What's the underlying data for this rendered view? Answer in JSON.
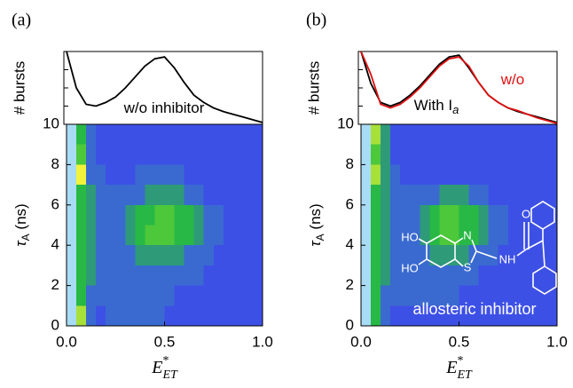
{
  "chart_data": [
    {
      "type": "line",
      "panel_label": "(a)",
      "ylabel": "# bursts",
      "xlim": [
        0,
        1
      ],
      "ylim": [
        0,
        80
      ],
      "x": [
        0,
        0.05,
        0.1,
        0.15,
        0.2,
        0.25,
        0.3,
        0.35,
        0.4,
        0.45,
        0.5,
        0.55,
        0.6,
        0.65,
        0.7,
        0.75,
        0.8,
        0.85,
        0.9,
        0.95,
        1
      ],
      "series": [
        {
          "name": "w/o inhibitor",
          "color": "#000000",
          "values": [
            80,
            40,
            22,
            20,
            24,
            30,
            40,
            52,
            64,
            72,
            74,
            62,
            46,
            32,
            24,
            18,
            14,
            11,
            8,
            5,
            2
          ]
        }
      ]
    },
    {
      "type": "heatmap",
      "xlim": [
        0,
        1
      ],
      "ylim": [
        0,
        10
      ],
      "xticks": [
        {
          "value": 0,
          "label": "0.0"
        },
        {
          "value": 0.5,
          "label": "0.5"
        },
        {
          "value": 1,
          "label": "1.0"
        }
      ],
      "yticks": [
        0,
        2,
        4,
        6,
        8,
        10
      ],
      "xlabel": {
        "base": "E",
        "sup": "*",
        "sub": "ET"
      },
      "ylabel": {
        "base": "τ",
        "sub": "A",
        "unit": " (ns)"
      },
      "colors": [
        "#3d50e6",
        "#3a6ad0",
        "#2e9a78",
        "#28b845",
        "#4cc83a",
        "#a8e03a",
        "#f2f23a",
        "#a8dcf5"
      ],
      "z": [
        [
          7,
          3,
          1,
          0,
          0,
          0,
          0,
          0,
          0,
          0,
          0,
          0,
          0,
          0,
          0,
          0,
          0,
          0,
          0,
          0
        ],
        [
          7,
          4,
          1,
          0,
          0,
          0,
          0,
          0,
          0,
          0,
          0,
          0,
          0,
          0,
          0,
          0,
          0,
          0,
          0,
          0
        ],
        [
          7,
          6,
          1,
          1,
          0,
          0,
          0,
          1,
          1,
          1,
          1,
          1,
          0,
          0,
          0,
          0,
          0,
          0,
          0,
          0
        ],
        [
          7,
          3,
          2,
          1,
          1,
          1,
          1,
          1,
          2,
          2,
          2,
          2,
          1,
          1,
          0,
          0,
          0,
          0,
          0,
          0
        ],
        [
          7,
          3,
          2,
          1,
          1,
          1,
          2,
          3,
          3,
          4,
          4,
          3,
          3,
          2,
          1,
          1,
          0,
          0,
          0,
          0
        ],
        [
          7,
          3,
          2,
          1,
          1,
          1,
          2,
          3,
          4,
          4,
          4,
          3,
          3,
          2,
          1,
          1,
          0,
          0,
          0,
          0
        ],
        [
          7,
          3,
          2,
          1,
          1,
          1,
          1,
          2,
          2,
          2,
          2,
          2,
          1,
          1,
          1,
          0,
          0,
          0,
          0,
          0
        ],
        [
          7,
          3,
          2,
          1,
          1,
          1,
          1,
          1,
          1,
          1,
          1,
          1,
          1,
          1,
          0,
          0,
          0,
          0,
          0,
          0
        ],
        [
          7,
          3,
          1,
          1,
          1,
          1,
          1,
          1,
          1,
          1,
          1,
          0,
          0,
          0,
          0,
          0,
          0,
          0,
          0,
          0
        ],
        [
          7,
          5,
          1,
          0,
          1,
          1,
          1,
          1,
          1,
          1,
          0,
          0,
          0,
          0,
          0,
          0,
          0,
          0,
          0,
          0
        ]
      ]
    },
    {
      "type": "line",
      "panel_label": "(b)",
      "ylabel": "# bursts",
      "xlim": [
        0,
        1
      ],
      "ylim": [
        0,
        80
      ],
      "x": [
        0,
        0.05,
        0.1,
        0.15,
        0.2,
        0.25,
        0.3,
        0.35,
        0.4,
        0.45,
        0.5,
        0.55,
        0.6,
        0.65,
        0.7,
        0.75,
        0.8,
        0.85,
        0.9,
        0.95,
        1
      ],
      "series": [
        {
          "name": "With I",
          "name_sub": "a",
          "color": "#000000",
          "values": [
            80,
            45,
            24,
            20,
            24,
            32,
            42,
            54,
            66,
            74,
            76,
            62,
            46,
            32,
            24,
            18,
            14,
            11,
            8,
            5,
            2
          ]
        },
        {
          "name": "w/o",
          "color": "#e01010",
          "values": [
            80,
            55,
            22,
            18,
            22,
            30,
            40,
            52,
            64,
            72,
            74,
            64,
            46,
            32,
            24,
            18,
            15,
            11,
            7,
            4,
            1
          ]
        }
      ]
    },
    {
      "type": "heatmap",
      "xlim": [
        0,
        1
      ],
      "ylim": [
        0,
        10
      ],
      "xticks": [
        {
          "value": 0,
          "label": "0.0"
        },
        {
          "value": 0.5,
          "label": "0.5"
        },
        {
          "value": 1,
          "label": "1.0"
        }
      ],
      "yticks": [
        0,
        2,
        4,
        6,
        8,
        10
      ],
      "xlabel": {
        "base": "E",
        "sup": "*",
        "sub": "ET"
      },
      "ylabel": {
        "base": "τ",
        "sub": "A",
        "unit": " (ns)"
      },
      "colors": [
        "#3d50e6",
        "#3a6ad0",
        "#2e9a78",
        "#28b845",
        "#4cc83a",
        "#a8e03a",
        "#f2f23a",
        "#a8dcf5"
      ],
      "z": [
        [
          7,
          5,
          2,
          0,
          0,
          0,
          0,
          0,
          0,
          0,
          0,
          0,
          0,
          0,
          0,
          0,
          0,
          0,
          0,
          0
        ],
        [
          7,
          4,
          2,
          0,
          0,
          0,
          0,
          0,
          0,
          0,
          0,
          0,
          0,
          0,
          0,
          0,
          0,
          0,
          0,
          0
        ],
        [
          7,
          5,
          2,
          1,
          0,
          0,
          0,
          0,
          0,
          0,
          0,
          0,
          0,
          0,
          0,
          0,
          0,
          0,
          0,
          0
        ],
        [
          7,
          3,
          2,
          1,
          1,
          1,
          1,
          1,
          2,
          2,
          2,
          1,
          1,
          0,
          0,
          0,
          0,
          0,
          0,
          0
        ],
        [
          7,
          3,
          2,
          1,
          1,
          1,
          2,
          3,
          4,
          4,
          3,
          3,
          2,
          1,
          1,
          0,
          0,
          0,
          0,
          0
        ],
        [
          7,
          3,
          2,
          1,
          1,
          1,
          2,
          3,
          4,
          4,
          3,
          3,
          2,
          1,
          1,
          0,
          0,
          0,
          0,
          0
        ],
        [
          7,
          3,
          2,
          1,
          1,
          1,
          1,
          2,
          2,
          2,
          2,
          1,
          1,
          1,
          0,
          0,
          0,
          0,
          0,
          0
        ],
        [
          7,
          3,
          2,
          1,
          1,
          1,
          1,
          1,
          1,
          1,
          1,
          1,
          0,
          0,
          0,
          0,
          0,
          0,
          0,
          0
        ],
        [
          7,
          3,
          1,
          1,
          1,
          1,
          1,
          1,
          1,
          1,
          0,
          0,
          0,
          0,
          0,
          0,
          0,
          0,
          0,
          0
        ],
        [
          7,
          3,
          1,
          0,
          0,
          0,
          0,
          0,
          0,
          0,
          0,
          0,
          0,
          0,
          0,
          0,
          0,
          0,
          0,
          0
        ]
      ],
      "annotations": {
        "molecule": [
          "HO",
          "HO",
          "N",
          "S",
          "NH",
          "O"
        ],
        "caption": "allosteric inhibitor"
      }
    }
  ]
}
